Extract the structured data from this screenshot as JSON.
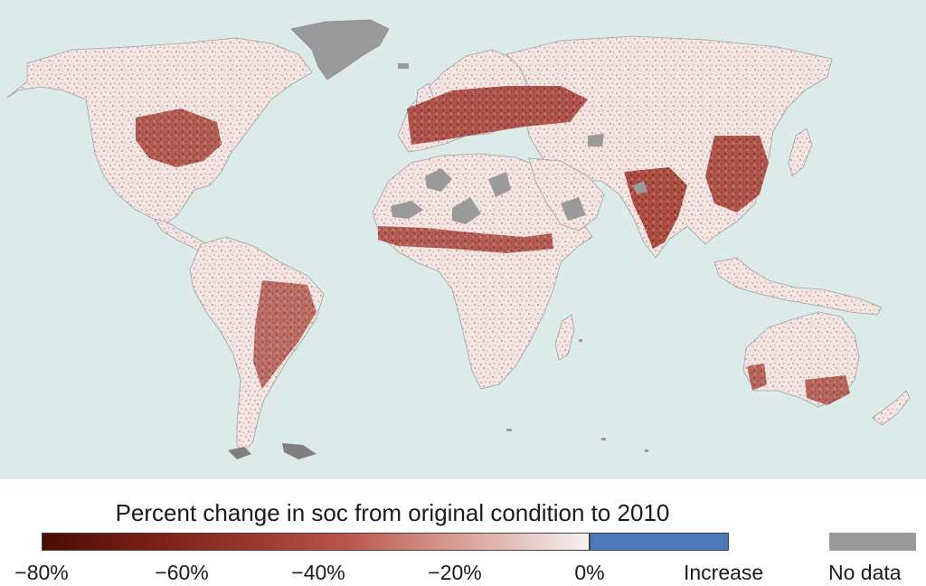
{
  "legend": {
    "title": "Percent change in soc from original condition to 2010",
    "ticks": [
      "−80%",
      "−60%",
      "−40%",
      "−20%",
      "0%"
    ],
    "increase_label": "Increase",
    "nodata_label": "No data"
  },
  "colors": {
    "ocean": "#dceaea",
    "land_base": "#f1e7e6",
    "loss_light": "#d79b92",
    "loss_mid": "#b9544a",
    "loss_dark": "#7a1e16",
    "loss_max": "#4a0c04",
    "zero": "#f4f1f1",
    "increase": "#4a78b8",
    "no_data": "#9a9a9a"
  }
}
